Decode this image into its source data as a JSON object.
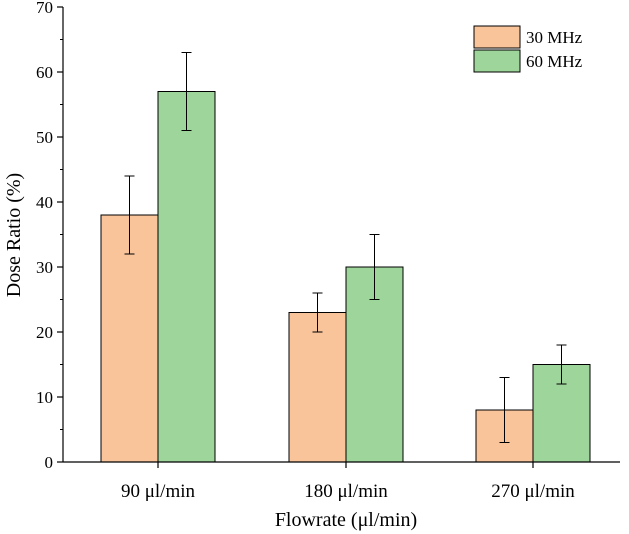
{
  "chart_data": {
    "type": "bar",
    "title": "",
    "xlabel": "Flowrate (μl/min)",
    "ylabel": "Dose Ratio (%)",
    "categories": [
      "90  μl/min",
      "180  μl/min",
      "270  μl/min"
    ],
    "ylim": [
      0,
      70
    ],
    "yticks": [
      0,
      10,
      20,
      30,
      40,
      50,
      60,
      70
    ],
    "grid": false,
    "legend_position": "top-right",
    "series": [
      {
        "name": "30 MHz",
        "color": "#f9c49a",
        "values": [
          38,
          23,
          8
        ],
        "errors": [
          6,
          3,
          5
        ]
      },
      {
        "name": "60 MHz",
        "color": "#9ed59a",
        "values": [
          57,
          30,
          15
        ],
        "errors": [
          6,
          5,
          3
        ]
      }
    ]
  }
}
